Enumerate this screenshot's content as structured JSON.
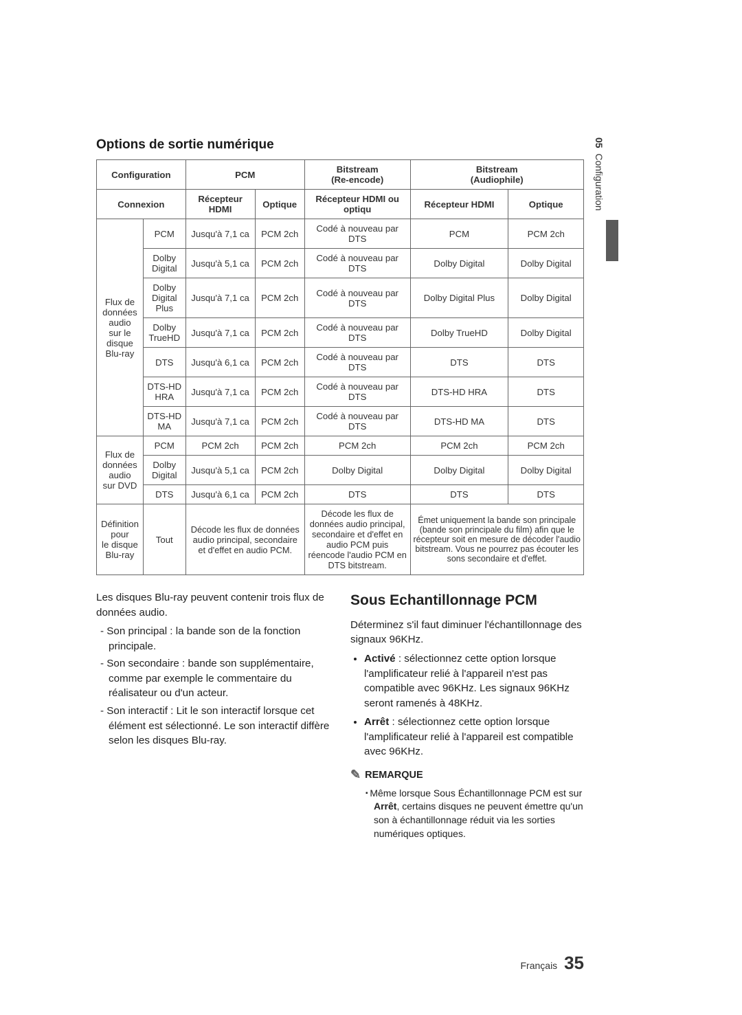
{
  "side": {
    "chapter": "05",
    "label": "Configuration"
  },
  "section_title": "Options de sortie numérique",
  "table": {
    "header1": {
      "config": "Configuration",
      "pcm": "PCM",
      "bitstream_re": "Bitstream",
      "bitstream_re_sub": "(Re-encode)",
      "bitstream_au": "Bitstream",
      "bitstream_au_sub": "(Audiophile)"
    },
    "header2": {
      "connexion": "Connexion",
      "hdmi": "Récepteur HDMI",
      "optique": "Optique",
      "hdmi_or_opt": "Récepteur HDMI ou optiqu",
      "hdmi2": "Récepteur HDMI",
      "optique2": "Optique"
    },
    "group1_label": "Flux de\ndonnées audio\nsur le disque\nBlu-ray",
    "group1": [
      [
        "PCM",
        "Jusqu'à 7,1 ca",
        "PCM 2ch",
        "Codé à nouveau par DTS",
        "PCM",
        "PCM 2ch"
      ],
      [
        "Dolby Digital",
        "Jusqu'à 5,1 ca",
        "PCM 2ch",
        "Codé à nouveau par DTS",
        "Dolby Digital",
        "Dolby Digital"
      ],
      [
        "Dolby Digital Plus",
        "Jusqu'à 7,1 ca",
        "PCM 2ch",
        "Codé à nouveau par DTS",
        "Dolby Digital Plus",
        "Dolby Digital"
      ],
      [
        "Dolby TrueHD",
        "Jusqu'à 7,1 ca",
        "PCM 2ch",
        "Codé à nouveau par DTS",
        "Dolby TrueHD",
        "Dolby Digital"
      ],
      [
        "DTS",
        "Jusqu'à 6,1 ca",
        "PCM 2ch",
        "Codé à nouveau par DTS",
        "DTS",
        "DTS"
      ],
      [
        "DTS-HD HRA",
        "Jusqu'à 7,1 ca",
        "PCM 2ch",
        "Codé à nouveau par DTS",
        "DTS-HD HRA",
        "DTS"
      ],
      [
        "DTS-HD MA",
        "Jusqu'à 7,1 ca",
        "PCM 2ch",
        "Codé à nouveau par DTS",
        "DTS-HD MA",
        "DTS"
      ]
    ],
    "group2_label": "Flux de\ndonnées audio\nsur DVD",
    "group2": [
      [
        "PCM",
        "PCM 2ch",
        "PCM 2ch",
        "PCM 2ch",
        "PCM 2ch",
        "PCM 2ch"
      ],
      [
        "Dolby Digital",
        "Jusqu'à 5,1 ca",
        "PCM 2ch",
        "Dolby Digital",
        "Dolby Digital",
        "Dolby Digital"
      ],
      [
        "DTS",
        "Jusqu'à 6,1 ca",
        "PCM 2ch",
        "DTS",
        "DTS",
        "DTS"
      ]
    ],
    "def_row": {
      "label": "Définition pour\nle disque\nBlu-ray",
      "c1": "Tout",
      "c2": "Décode les flux de données audio principal, secondaire et d'effet en audio PCM.",
      "c3": "Décode les flux de données audio principal, secondaire et d'effet en audio PCM puis réencode l'audio PCM en DTS bitstream.",
      "c4": "Émet uniquement la bande son principale (bande son principale du film) afin que le récepteur soit en mesure de décoder l'audio bitstream. Vous ne pourrez pas écouter les sons secondaire et d'effet."
    }
  },
  "left_col": {
    "intro": "Les disques Blu-ray peuvent contenir trois flux de données audio.",
    "items": [
      "Son principal : la bande son de la fonction principale.",
      "Son secondaire : bande son supplémentaire, comme par exemple le commentaire du réalisateur ou d'un acteur.",
      "Son interactif : Lit le son interactif lorsque cet élément est sélectionné. Le son interactif diffère selon les disques Blu-ray."
    ]
  },
  "right_col": {
    "heading": "Sous Echantillonnage PCM",
    "intro": "Déterminez s'il faut diminuer l'échantillonnage des signaux 96KHz.",
    "items": [
      {
        "bold": "Activé",
        "rest": " : sélectionnez cette option lorsque l'amplificateur relié à l'appareil n'est pas compatible avec 96KHz. Les signaux 96KHz seront ramenés à 48KHz."
      },
      {
        "bold": "Arrêt",
        "rest": " : sélectionnez cette option lorsque l'amplificateur relié à l'appareil est compatible avec 96KHz."
      }
    ],
    "remarque_label": "REMARQUE",
    "note_pre": "Même lorsque Sous Échantillonnage PCM est sur ",
    "note_bold": "Arrêt",
    "note_post": ", certains disques ne peuvent émettre qu'un son à échantillonnage réduit via les sorties numériques optiques."
  },
  "footer": {
    "lang": "Français",
    "page": "35"
  }
}
